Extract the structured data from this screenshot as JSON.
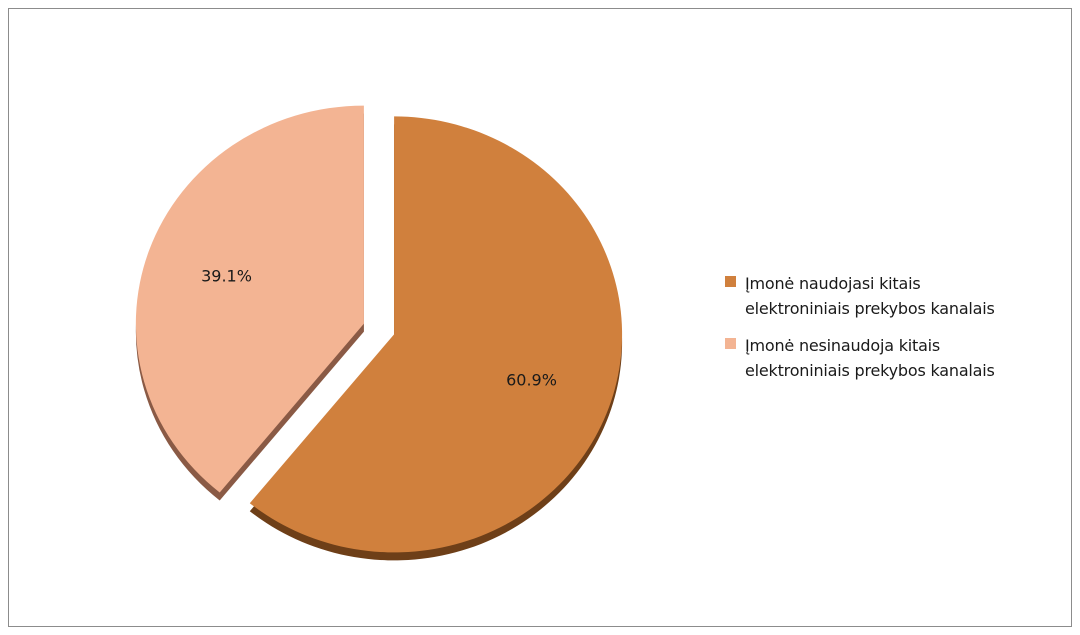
{
  "chart_data": {
    "type": "pie",
    "title": "",
    "slices": [
      {
        "name": "Įmonė naudojasi kitais elektroniniais prekybos kanalais",
        "value": 60.9,
        "label": "60.9%",
        "color": "#d0803d",
        "shade": "#6e3f18"
      },
      {
        "name": "Įmonė nesinaudoja kitais elektroniniais prekybos kanalais",
        "value": 39.1,
        "label": "39.1%",
        "color": "#f3b493",
        "shade": "#8a5a45"
      }
    ],
    "legend_position": "right"
  },
  "legend": {
    "items": [
      {
        "line1": "Įmonė naudojasi kitais",
        "line2": "elektroniniais prekybos kanalais",
        "color": "#d0803d"
      },
      {
        "line1": "Įmonė nesinaudoja kitais",
        "line2": "elektroniniais prekybos kanalais",
        "color": "#f3b493"
      }
    ]
  }
}
